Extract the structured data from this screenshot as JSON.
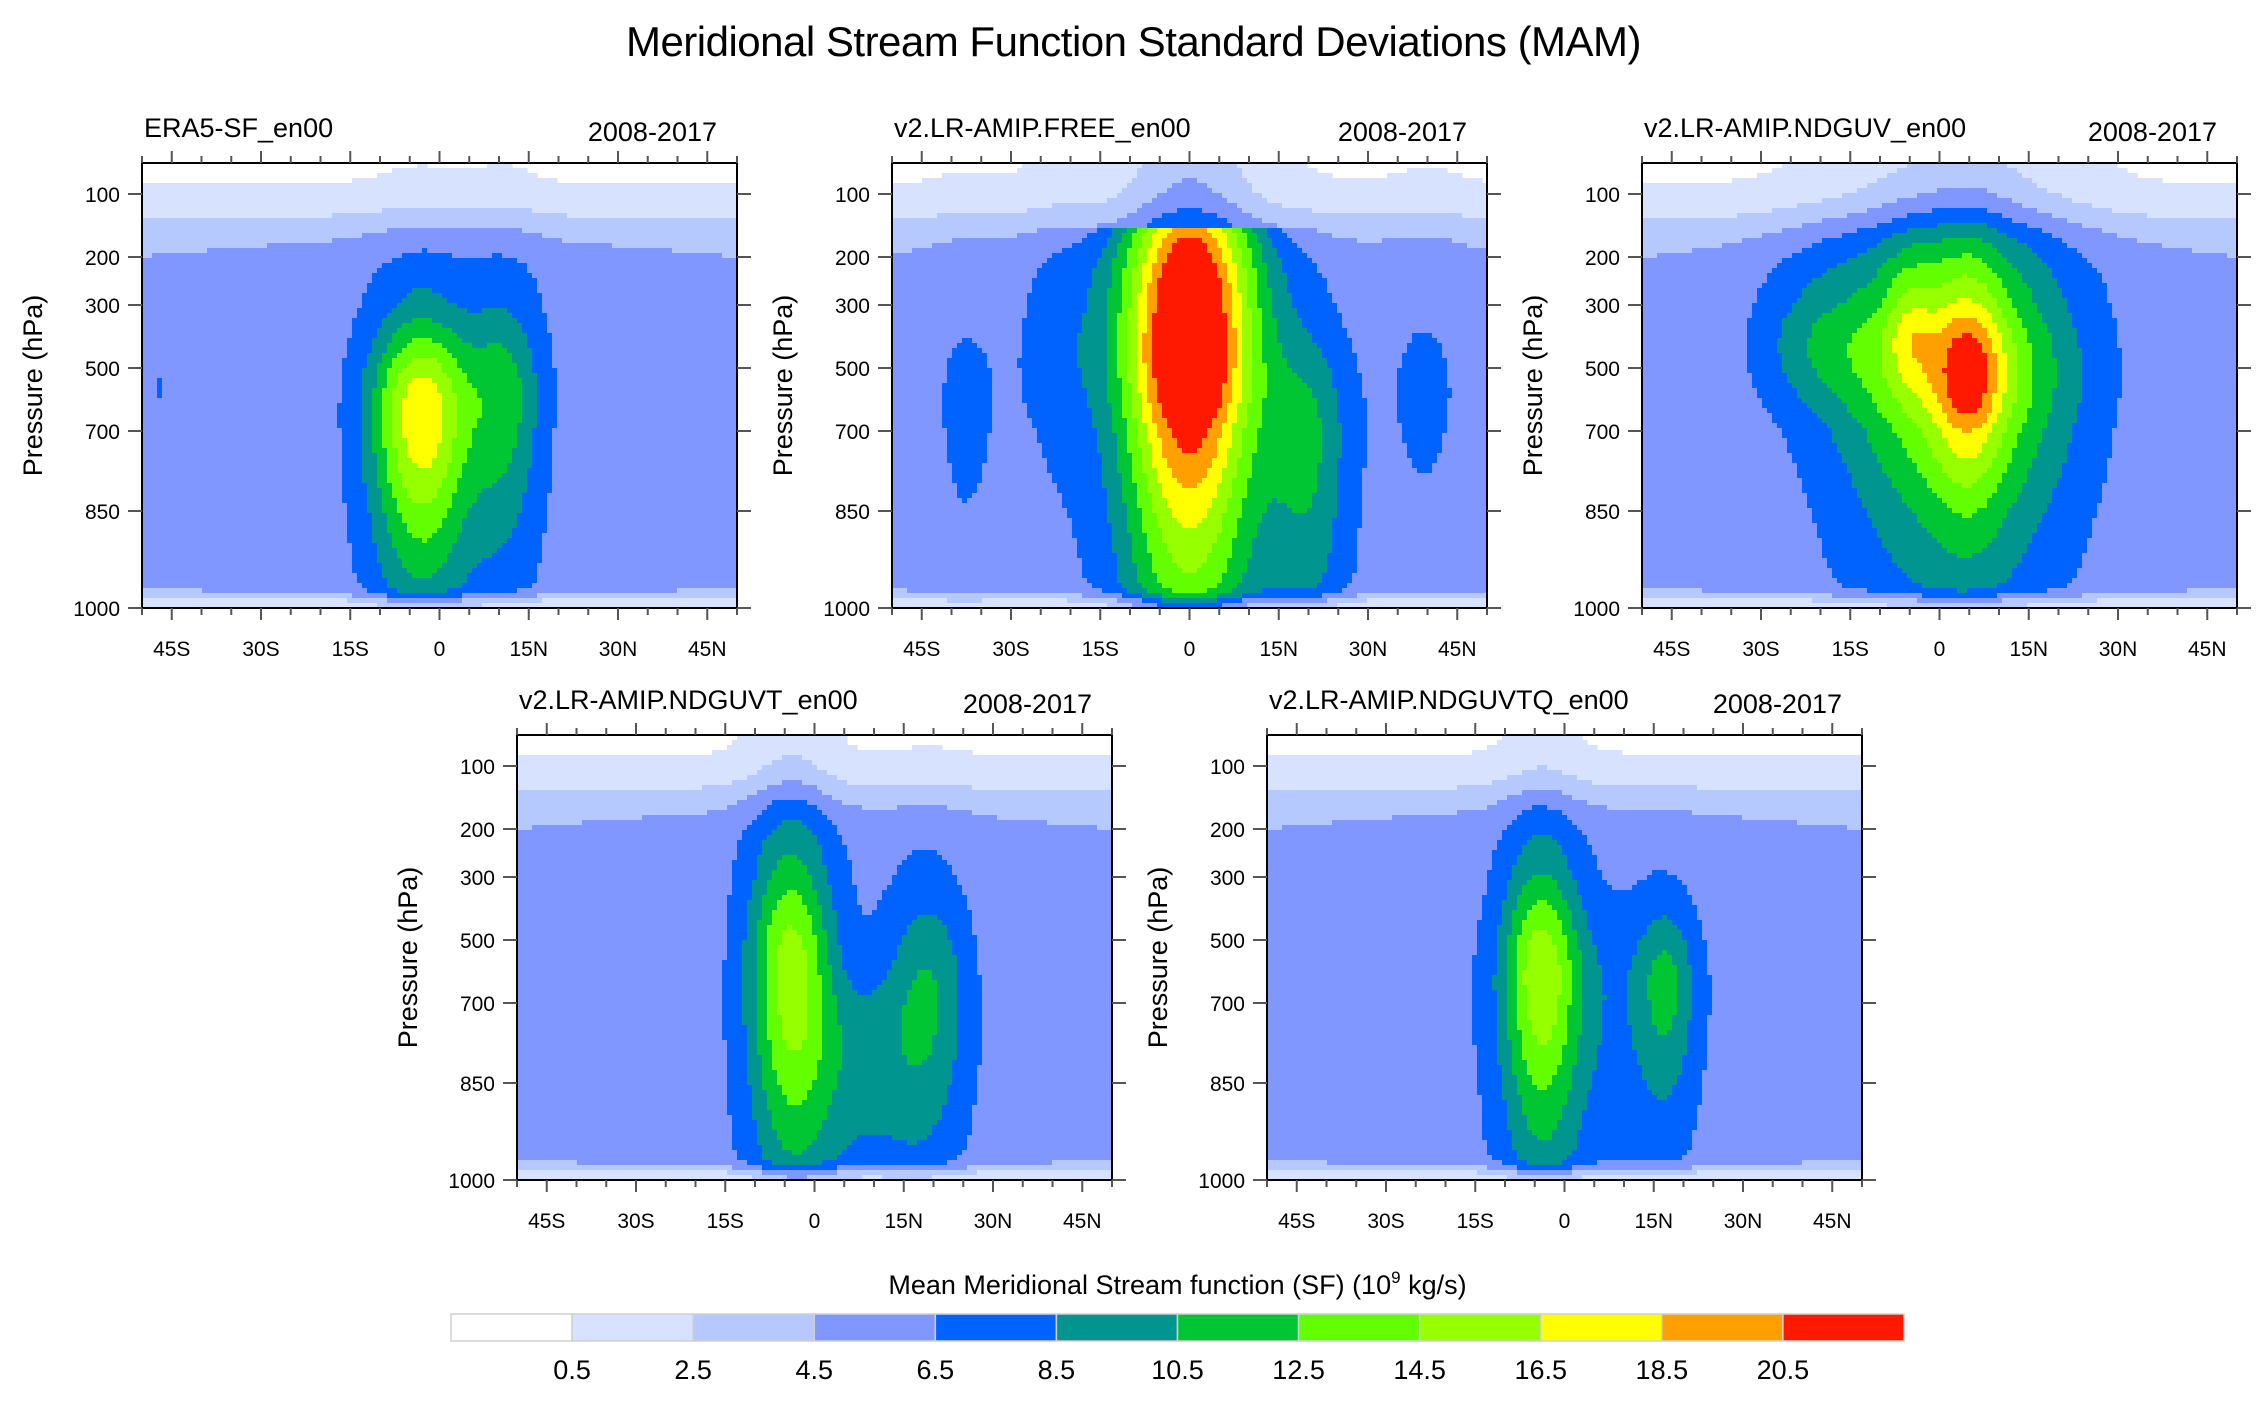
{
  "title": "Meridional Stream Function Standard Deviations (MAM)",
  "chart_data": {
    "type": "heatmap",
    "subtype": "filled-contour",
    "title": "Meridional Stream Function Standard Deviations (MAM)",
    "shared": {
      "xlabel": "",
      "ylabel": "Pressure (hPa)",
      "x_ticks": [
        "45S",
        "30S",
        "15S",
        "0",
        "15N",
        "30N",
        "45N"
      ],
      "x_tick_values": [
        -45,
        -30,
        -15,
        0,
        15,
        30,
        45
      ],
      "x_range": [
        -50,
        50
      ],
      "y_ticks": [
        "100",
        "200",
        "300",
        "500",
        "700",
        "850",
        "1000"
      ],
      "y_tick_values": [
        100,
        200,
        300,
        500,
        700,
        850,
        1000
      ],
      "y_range": [
        50,
        1000
      ],
      "y_inverted": true
    },
    "colorbar": {
      "title": "Mean Meridional Stream function (SF) (10",
      "title_exponent": "9",
      "title_suffix": " kg/s)",
      "levels": [
        "0.5",
        "2.5",
        "4.5",
        "6.5",
        "8.5",
        "10.5",
        "12.5",
        "14.5",
        "16.5",
        "18.5",
        "20.5"
      ],
      "level_values": [
        0.5,
        2.5,
        4.5,
        6.5,
        8.5,
        10.5,
        12.5,
        14.5,
        16.5,
        18.5,
        20.5
      ],
      "colors": [
        "#ffffff",
        "#d6e2ff",
        "#b5c9ff",
        "#8097ff",
        "#0063ff",
        "#00968f",
        "#00c633",
        "#63ff00",
        "#96ff00",
        "#ffff00",
        "#ffa000",
        "#ff1900"
      ],
      "placement": "bottom"
    },
    "panels": [
      {
        "name": "ERA5-SF_en00",
        "period": "2008-2017",
        "max_level": 16.5,
        "features": [
          {
            "desc": "core max ~17 near 3S at 700 hPa",
            "lat": -3,
            "p": 680,
            "value": 17
          },
          {
            "desc": "secondary max ~11 near 10N at 600 hPa",
            "lat": 10,
            "p": 600,
            "value": 11
          }
        ]
      },
      {
        "name": "v2.LR-AMIP.FREE_en00",
        "period": "2008-2017",
        "max_level": 20.5,
        "features": [
          {
            "desc": "core max >20.5 near 0 at 200-600 hPa",
            "lat": -1,
            "p": 420,
            "value": 23
          },
          {
            "desc": "secondary ~9 near 20N at 700 hPa",
            "lat": 20,
            "p": 700,
            "value": 9
          }
        ]
      },
      {
        "name": "v2.LR-AMIP.NDGUV_en00",
        "period": "2008-2017",
        "max_level": 18.5,
        "features": [
          {
            "desc": "max ~19 near 5N at 500 hPa",
            "lat": 5,
            "p": 500,
            "value": 19
          },
          {
            "desc": "max ~17 near 5S at 350 hPa",
            "lat": -5,
            "p": 370,
            "value": 17
          }
        ]
      },
      {
        "name": "v2.LR-AMIP.NDGUVT_en00",
        "period": "2008-2017",
        "max_level": 14.5,
        "features": [
          {
            "desc": "max ~15 near 3S at 600 hPa",
            "lat": -3,
            "p": 600,
            "value": 15
          },
          {
            "desc": "secondary ~9 near 20N at 600 hPa",
            "lat": 20,
            "p": 600,
            "value": 9
          }
        ]
      },
      {
        "name": "v2.LR-AMIP.NDGUVTQ_en00",
        "period": "2008-2017",
        "max_level": 14.5,
        "features": [
          {
            "desc": "max ~14 near 4S at 650 hPa",
            "lat": -4,
            "p": 650,
            "value": 14
          },
          {
            "desc": "secondary ~9 near 18N at 650 hPa",
            "lat": 18,
            "p": 650,
            "value": 9
          }
        ]
      }
    ]
  }
}
